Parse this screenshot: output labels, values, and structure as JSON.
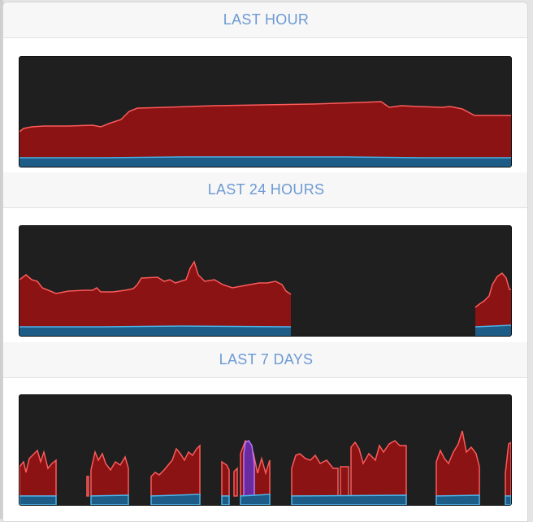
{
  "colors": {
    "title": "#6d9ad3",
    "graph_bg": "#1f1f1f",
    "area_red": "#8b1314",
    "line_red": "#ff5a5a",
    "area_blue": "#1d5c86",
    "line_blue": "#4bb3e8",
    "area_purple": "#6a2aa0",
    "line_purple": "#b07cff"
  },
  "sections": [
    {
      "title": "LAST HOUR"
    },
    {
      "title": "LAST 24 HOURS"
    },
    {
      "title": "LAST 7 DAYS"
    }
  ]
}
